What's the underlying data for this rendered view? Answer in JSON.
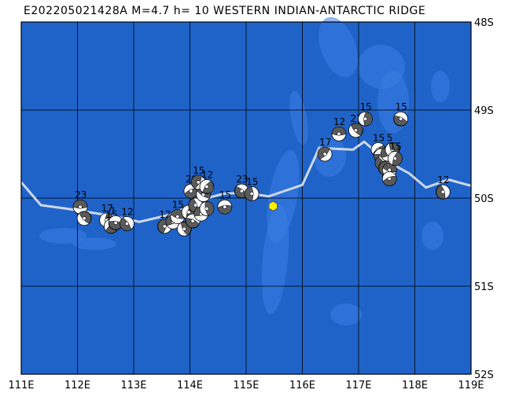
{
  "header": {
    "title": "E202205021428A M=4.7 h= 10 WESTERN INDIAN-ANTARCTIC RIDGE"
  },
  "map": {
    "lon_range": [
      111,
      119
    ],
    "lat_range": [
      -52,
      -48
    ],
    "ocean_color": "#1f63c9",
    "bathy_color": "#3a7ee3",
    "grid_color": "#000000",
    "ridge_color": "#cfd8e6",
    "event_marker_color": "#ffee00",
    "event_location": {
      "lon": 115.48,
      "lat": -50.09
    },
    "lon_labels": [
      "111E",
      "112E",
      "113E",
      "114E",
      "115E",
      "116E",
      "117E",
      "118E",
      "119E"
    ],
    "lat_labels": [
      "48S",
      "49S",
      "50S",
      "51S",
      "52S"
    ],
    "ridge_path": [
      [
        111.0,
        -49.82
      ],
      [
        111.35,
        -50.08
      ],
      [
        111.8,
        -50.12
      ],
      [
        112.6,
        -50.2
      ],
      [
        113.1,
        -50.27
      ],
      [
        113.7,
        -50.18
      ],
      [
        114.2,
        -50.02
      ],
      [
        114.6,
        -49.95
      ],
      [
        115.0,
        -49.94
      ],
      [
        115.4,
        -49.98
      ],
      [
        116.0,
        -49.85
      ],
      [
        116.3,
        -49.43
      ],
      [
        116.9,
        -49.45
      ],
      [
        117.1,
        -49.36
      ],
      [
        117.5,
        -49.58
      ],
      [
        117.9,
        -49.72
      ],
      [
        118.2,
        -49.88
      ],
      [
        118.6,
        -49.79
      ],
      [
        119.0,
        -49.86
      ]
    ]
  },
  "events": [
    {
      "lon": 112.05,
      "lat": -50.1,
      "label": "23"
    },
    {
      "lon": 112.12,
      "lat": -50.23,
      "label": ""
    },
    {
      "lon": 112.52,
      "lat": -50.25,
      "label": "17"
    },
    {
      "lon": 112.6,
      "lat": -50.32,
      "label": "15"
    },
    {
      "lon": 112.68,
      "lat": -50.28,
      "label": "1"
    },
    {
      "lon": 112.88,
      "lat": -50.29,
      "label": "12"
    },
    {
      "lon": 113.55,
      "lat": -50.32,
      "label": "12"
    },
    {
      "lon": 113.7,
      "lat": -50.27,
      "label": ""
    },
    {
      "lon": 113.78,
      "lat": -50.21,
      "label": "15"
    },
    {
      "lon": 113.9,
      "lat": -50.35,
      "label": ""
    },
    {
      "lon": 113.98,
      "lat": -50.16,
      "label": ""
    },
    {
      "lon": 114.02,
      "lat": -49.92,
      "label": "20"
    },
    {
      "lon": 114.05,
      "lat": -50.26,
      "label": ""
    },
    {
      "lon": 114.1,
      "lat": -50.08,
      "label": ""
    },
    {
      "lon": 114.15,
      "lat": -49.82,
      "label": "15"
    },
    {
      "lon": 114.2,
      "lat": -50.18,
      "label": ""
    },
    {
      "lon": 114.24,
      "lat": -49.96,
      "label": ""
    },
    {
      "lon": 114.3,
      "lat": -50.12,
      "label": ""
    },
    {
      "lon": 114.3,
      "lat": -49.87,
      "label": "12"
    },
    {
      "lon": 114.62,
      "lat": -50.1,
      "label": "15"
    },
    {
      "lon": 114.92,
      "lat": -49.92,
      "label": "23"
    },
    {
      "lon": 115.1,
      "lat": -49.95,
      "label": "15"
    },
    {
      "lon": 116.4,
      "lat": -49.5,
      "label": "17"
    },
    {
      "lon": 116.65,
      "lat": -49.27,
      "label": "12"
    },
    {
      "lon": 116.95,
      "lat": -49.23,
      "label": "21"
    },
    {
      "lon": 117.12,
      "lat": -49.1,
      "label": "15"
    },
    {
      "lon": 117.35,
      "lat": -49.45,
      "label": "15"
    },
    {
      "lon": 117.4,
      "lat": -49.52,
      "label": ""
    },
    {
      "lon": 117.42,
      "lat": -49.6,
      "label": ""
    },
    {
      "lon": 117.48,
      "lat": -49.66,
      "label": ""
    },
    {
      "lon": 117.52,
      "lat": -49.5,
      "label": ""
    },
    {
      "lon": 117.55,
      "lat": -49.68,
      "label": ""
    },
    {
      "lon": 117.6,
      "lat": -49.45,
      "label": "5"
    },
    {
      "lon": 117.65,
      "lat": -49.55,
      "label": "15"
    },
    {
      "lon": 117.55,
      "lat": -49.78,
      "label": ""
    },
    {
      "lon": 117.75,
      "lat": -49.1,
      "label": "15"
    },
    {
      "lon": 118.5,
      "lat": -49.93,
      "label": "12"
    }
  ]
}
